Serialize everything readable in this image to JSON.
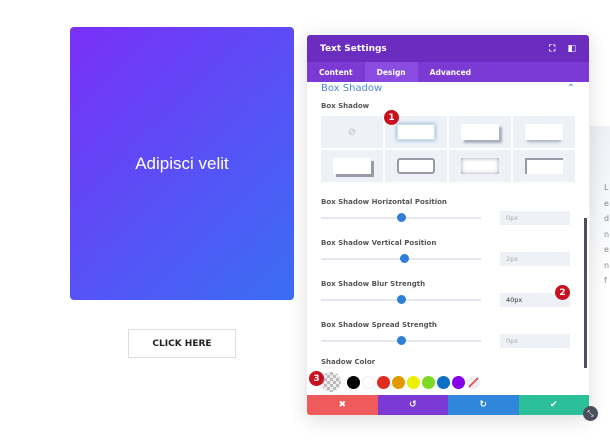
{
  "preview": {
    "heading": "Adipisci velit",
    "button": "CLICK HERE",
    "side_letters": [
      "L",
      "e",
      "d",
      "n",
      "e",
      "n",
      "f"
    ]
  },
  "panel": {
    "title": "Text Settings",
    "icons": [
      "fullscreen-icon",
      "sidebar-icon"
    ],
    "tabs": [
      {
        "label": "Content"
      },
      {
        "label": "Design"
      },
      {
        "label": "Advanced"
      }
    ],
    "active_tab": "Design",
    "section": "Box Shadow",
    "box_shadow_label": "Box Shadow",
    "fields": [
      {
        "label": "Box Shadow Horizontal Position",
        "value": "0px",
        "slider": 0.5
      },
      {
        "label": "Box Shadow Vertical Position",
        "value": "2px",
        "slider": 0.52
      },
      {
        "label": "Box Shadow Blur Strength",
        "value": "40px",
        "slider": 0.5
      },
      {
        "label": "Box Shadow Spread Strength",
        "value": "0px",
        "slider": 0.5
      }
    ],
    "shadow_color_label": "Shadow Color",
    "swatches": [
      "#000000",
      "#ffffff",
      "#e02b20",
      "#e09900",
      "#edf000",
      "#7cda24",
      "#0c71c3",
      "#8300e9"
    ],
    "footer": {
      "cancel": "✖",
      "undo": "↺",
      "redo": "↻",
      "save": "✔"
    },
    "footer_colors": [
      "#ef5b5b",
      "#7b3ad4",
      "#2f86db",
      "#2bbf9a"
    ],
    "badges": [
      "1",
      "2",
      "3"
    ]
  }
}
